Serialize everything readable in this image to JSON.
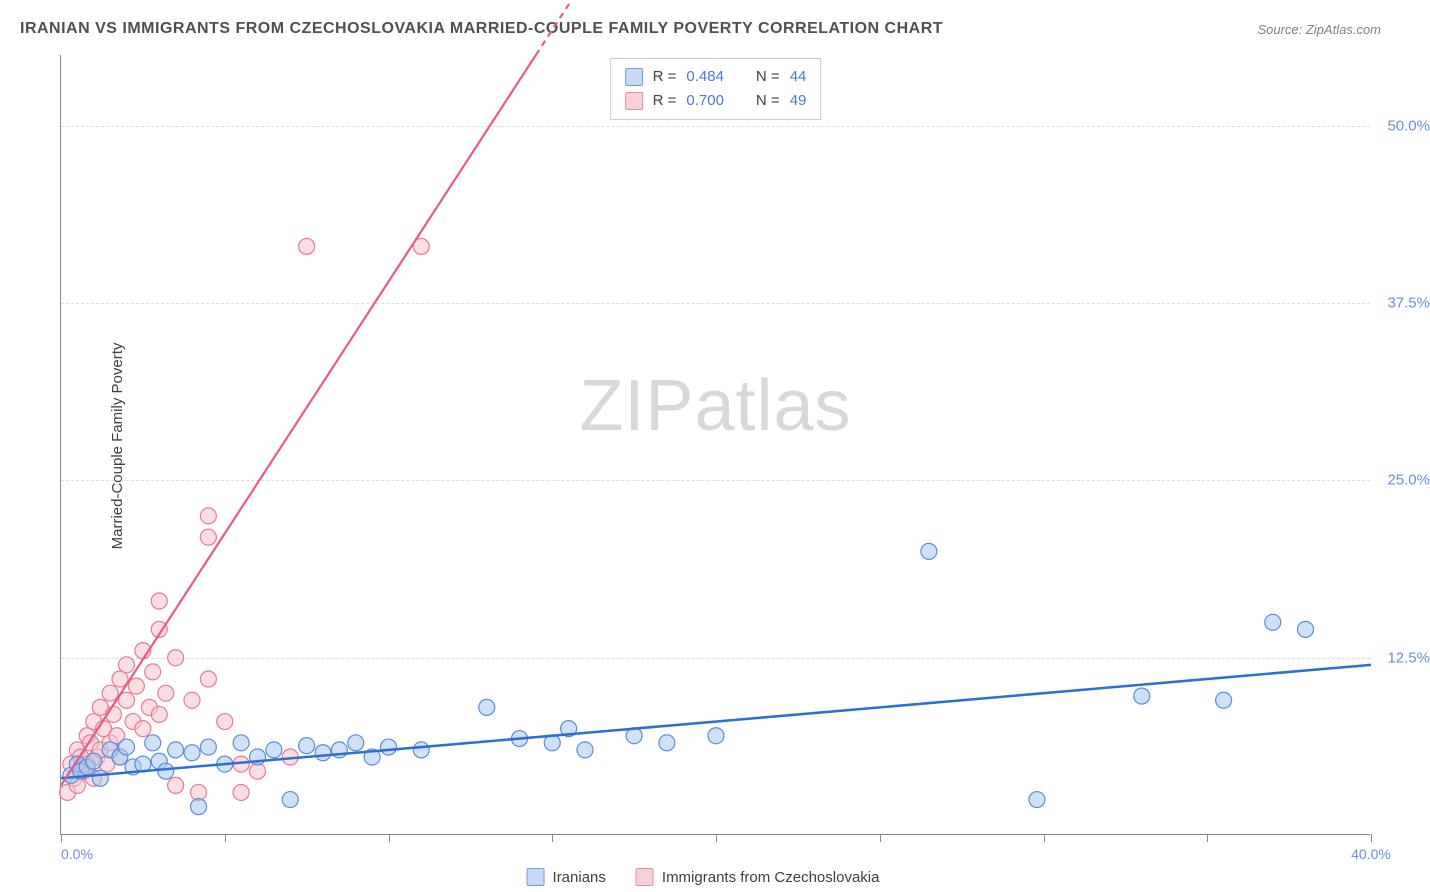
{
  "title": "IRANIAN VS IMMIGRANTS FROM CZECHOSLOVAKIA MARRIED-COUPLE FAMILY POVERTY CORRELATION CHART",
  "source": "Source: ZipAtlas.com",
  "y_axis_label": "Married-Couple Family Poverty",
  "watermark_zip": "ZIP",
  "watermark_atlas": "atlas",
  "chart": {
    "type": "scatter",
    "background_color": "#ffffff",
    "grid_color": "#dcdcdc",
    "axis_color": "#888888",
    "x_axis": {
      "min": 0,
      "max": 40,
      "ticks": [
        0,
        5,
        10,
        15,
        20,
        25,
        30,
        35,
        40
      ],
      "first_label": "0.0%",
      "last_label": "40.0%"
    },
    "y_axis": {
      "min": 0,
      "max": 55,
      "ticks": [
        {
          "v": 12.5,
          "l": "12.5%"
        },
        {
          "v": 25,
          "l": "25.0%"
        },
        {
          "v": 37.5,
          "l": "37.5%"
        },
        {
          "v": 50,
          "l": "50.0%"
        }
      ]
    },
    "series": [
      {
        "name": "Iranians",
        "color_fill": "#a8c8f0",
        "color_stroke": "#5b8dd6",
        "swatch_fill": "#c7dbf5",
        "swatch_stroke": "#6d9be0",
        "r_value": "0.484",
        "n_value": "44",
        "trend": {
          "x1": 0,
          "y1": 4.0,
          "x2": 40,
          "y2": 12.0,
          "color": "#2e6fd6",
          "width": 2.5
        },
        "marker_radius": 8,
        "points": [
          [
            0.3,
            4.2
          ],
          [
            0.5,
            5.0
          ],
          [
            0.6,
            4.5
          ],
          [
            0.8,
            4.8
          ],
          [
            1.0,
            5.2
          ],
          [
            1.2,
            4.0
          ],
          [
            1.5,
            6.0
          ],
          [
            1.8,
            5.5
          ],
          [
            2.0,
            6.2
          ],
          [
            2.2,
            4.8
          ],
          [
            2.5,
            5.0
          ],
          [
            2.8,
            6.5
          ],
          [
            3.0,
            5.2
          ],
          [
            3.2,
            4.5
          ],
          [
            3.5,
            6.0
          ],
          [
            4.0,
            5.8
          ],
          [
            4.2,
            2.0
          ],
          [
            4.5,
            6.2
          ],
          [
            5.0,
            5.0
          ],
          [
            5.5,
            6.5
          ],
          [
            6.0,
            5.5
          ],
          [
            6.5,
            6.0
          ],
          [
            7.0,
            2.5
          ],
          [
            7.5,
            6.3
          ],
          [
            8.0,
            5.8
          ],
          [
            8.5,
            6.0
          ],
          [
            9.0,
            6.5
          ],
          [
            9.5,
            5.5
          ],
          [
            10.0,
            6.2
          ],
          [
            11.0,
            6.0
          ],
          [
            13.0,
            9.0
          ],
          [
            14.0,
            6.8
          ],
          [
            15.0,
            6.5
          ],
          [
            15.5,
            7.5
          ],
          [
            16.0,
            6.0
          ],
          [
            17.5,
            7.0
          ],
          [
            18.5,
            6.5
          ],
          [
            20.0,
            7.0
          ],
          [
            26.5,
            20.0
          ],
          [
            29.8,
            2.5
          ],
          [
            33.0,
            9.8
          ],
          [
            37.0,
            15.0
          ],
          [
            38.0,
            14.5
          ],
          [
            35.5,
            9.5
          ]
        ]
      },
      {
        "name": "Immigrants from Czechoslovakia",
        "color_fill": "#f5c2cc",
        "color_stroke": "#e87a94",
        "swatch_fill": "#f7d0d8",
        "swatch_stroke": "#ea8ba0",
        "r_value": "0.700",
        "n_value": "49",
        "trend": {
          "x1": 0,
          "y1": 3.5,
          "x2": 14.5,
          "y2": 55.0,
          "color": "#e85a85",
          "width": 2.2,
          "dash_extend_to_y": 55
        },
        "marker_radius": 8,
        "points": [
          [
            0.2,
            3.0
          ],
          [
            0.3,
            5.0
          ],
          [
            0.4,
            4.0
          ],
          [
            0.5,
            6.0
          ],
          [
            0.5,
            3.5
          ],
          [
            0.6,
            5.5
          ],
          [
            0.7,
            4.5
          ],
          [
            0.8,
            7.0
          ],
          [
            0.8,
            5.0
          ],
          [
            0.9,
            6.5
          ],
          [
            1.0,
            4.0
          ],
          [
            1.0,
            8.0
          ],
          [
            1.1,
            5.5
          ],
          [
            1.2,
            9.0
          ],
          [
            1.2,
            6.0
          ],
          [
            1.3,
            7.5
          ],
          [
            1.4,
            5.0
          ],
          [
            1.5,
            10.0
          ],
          [
            1.5,
            6.5
          ],
          [
            1.6,
            8.5
          ],
          [
            1.7,
            7.0
          ],
          [
            1.8,
            11.0
          ],
          [
            1.8,
            5.5
          ],
          [
            2.0,
            9.5
          ],
          [
            2.0,
            12.0
          ],
          [
            2.2,
            8.0
          ],
          [
            2.3,
            10.5
          ],
          [
            2.5,
            7.5
          ],
          [
            2.5,
            13.0
          ],
          [
            2.7,
            9.0
          ],
          [
            2.8,
            11.5
          ],
          [
            3.0,
            8.5
          ],
          [
            3.0,
            14.5
          ],
          [
            3.2,
            10.0
          ],
          [
            3.5,
            12.5
          ],
          [
            3.5,
            3.5
          ],
          [
            4.0,
            9.5
          ],
          [
            4.2,
            3.0
          ],
          [
            4.5,
            11.0
          ],
          [
            5.0,
            8.0
          ],
          [
            5.5,
            5.0
          ],
          [
            6.0,
            4.5
          ],
          [
            7.0,
            5.5
          ],
          [
            4.5,
            21.0
          ],
          [
            4.5,
            22.5
          ],
          [
            3.0,
            16.5
          ],
          [
            7.5,
            41.5
          ],
          [
            11.0,
            41.5
          ],
          [
            5.5,
            3.0
          ]
        ]
      }
    ],
    "legend_top_labels": {
      "r": "R =",
      "n": "N ="
    },
    "legend_bottom": [
      {
        "label": "Iranians",
        "fill": "#c7dbf5",
        "stroke": "#6d9be0"
      },
      {
        "label": "Immigrants from Czechoslovakia",
        "fill": "#f7d0d8",
        "stroke": "#ea8ba0"
      }
    ]
  }
}
